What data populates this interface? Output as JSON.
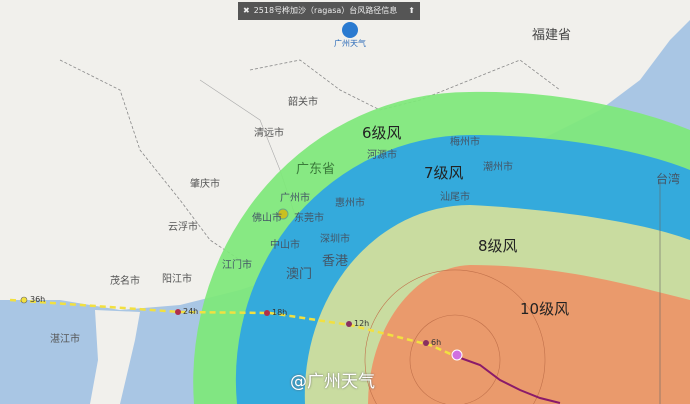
{
  "title_bar": {
    "title": "2518号桦加沙（ragasa）台风路径信息",
    "close_icon": "close-icon",
    "pin_icon": "pin-icon"
  },
  "logo": {
    "text": "广州天气"
  },
  "watermark": "@广州天气",
  "province_labels": {
    "fujian": "福建省",
    "guangdong": "广东省"
  },
  "city_labels": [
    {
      "id": "shaoguan",
      "name": "韶关市"
    },
    {
      "id": "qingyuan",
      "name": "清远市"
    },
    {
      "id": "zhaoqing",
      "name": "肇庆市"
    },
    {
      "id": "yunfu",
      "name": "云浮市"
    },
    {
      "id": "maoming",
      "name": "茂名市"
    },
    {
      "id": "yangjiang",
      "name": "阳江市"
    },
    {
      "id": "zhanjiang",
      "name": "湛江市"
    },
    {
      "id": "foshan",
      "name": "佛山市"
    },
    {
      "id": "guangzhou",
      "name": "广州市"
    },
    {
      "id": "dongguan",
      "name": "东莞市"
    },
    {
      "id": "huizhou",
      "name": "惠州市"
    },
    {
      "id": "heyuan",
      "name": "河源市"
    },
    {
      "id": "meizhou",
      "name": "梅州市"
    },
    {
      "id": "chaozhou",
      "name": "潮州市"
    },
    {
      "id": "shanwei",
      "name": "汕尾市"
    },
    {
      "id": "jiangmen",
      "name": "江门市"
    },
    {
      "id": "zhongshan",
      "name": "中山市"
    },
    {
      "id": "shenzhen",
      "name": "深圳市"
    },
    {
      "id": "hongkong",
      "name": "香港"
    },
    {
      "id": "macau",
      "name": "澳门"
    },
    {
      "id": "taiwan",
      "name": "台湾"
    }
  ],
  "wind_circles": [
    {
      "label": "6级风",
      "color": "#7ee87a"
    },
    {
      "label": "7级风",
      "color": "#2fa6e0"
    },
    {
      "label": "8级风",
      "color": "#c9dca0"
    },
    {
      "label": "10级风",
      "color": "#ea9a6c"
    }
  ],
  "forecast_points": [
    {
      "label": "36h"
    },
    {
      "label": "24h"
    },
    {
      "label": "18h"
    },
    {
      "label": "12h"
    },
    {
      "label": "6h"
    }
  ],
  "colors": {
    "land": "#f1f0ec",
    "sea": "#a9c6e4",
    "forecast_track": "#f2e040",
    "past_track": "#8a1a6a",
    "typhoon_center": "#d070e0"
  }
}
